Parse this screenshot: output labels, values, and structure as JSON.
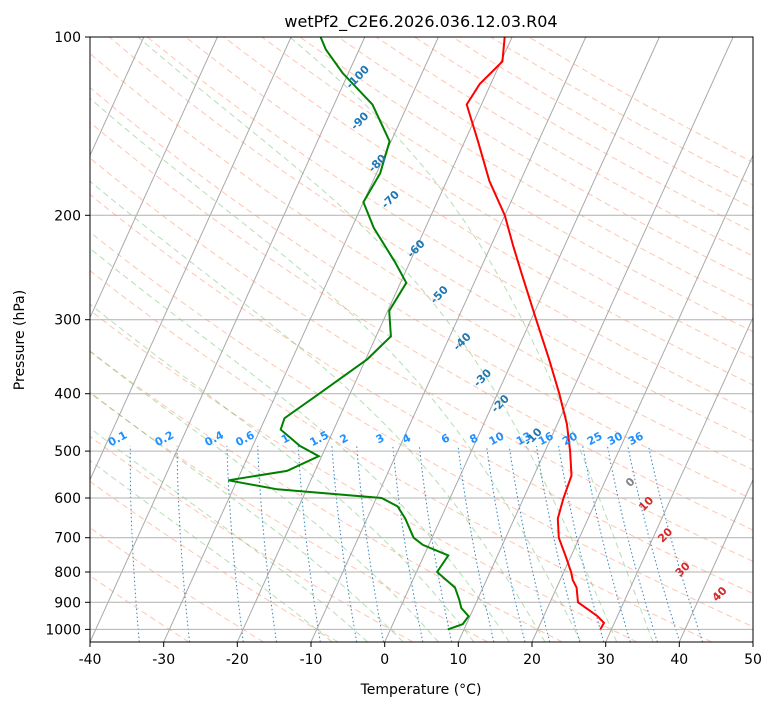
{
  "chart_data": {
    "type": "line",
    "chart_kind": "skew-T log-P diagram",
    "title": "wetPf2_C2E6.2026.036.12.03.R04",
    "xlabel": "Temperature (°C)",
    "ylabel": "Pressure (hPa)",
    "xlim": [
      -40,
      50
    ],
    "ylim": [
      1050,
      100
    ],
    "x_ticks": [
      -40,
      -30,
      -20,
      -10,
      0,
      10,
      20,
      30,
      40,
      50
    ],
    "y_ticks": [
      100,
      200,
      300,
      400,
      500,
      600,
      700,
      800,
      900,
      1000
    ],
    "grid": true,
    "series": [
      {
        "name": "temperature",
        "color": "#ff0000",
        "points": [
          [
            1000,
            28.5
          ],
          [
            975,
            28.6
          ],
          [
            950,
            27.3
          ],
          [
            925,
            25.6
          ],
          [
            900,
            23.8
          ],
          [
            850,
            22.7
          ],
          [
            825,
            21.7
          ],
          [
            800,
            21.0
          ],
          [
            750,
            19.2
          ],
          [
            700,
            17.2
          ],
          [
            650,
            15.9
          ],
          [
            600,
            15.4
          ],
          [
            550,
            15.1
          ],
          [
            500,
            13.4
          ],
          [
            450,
            11.3
          ],
          [
            400,
            8.4
          ],
          [
            350,
            4.9
          ],
          [
            300,
            0.7
          ],
          [
            250,
            -4.2
          ],
          [
            225,
            -7.0
          ],
          [
            200,
            -10.0
          ],
          [
            175,
            -14.2
          ],
          [
            150,
            -18.2
          ],
          [
            130,
            -22.0
          ],
          [
            120,
            -21.5
          ],
          [
            110,
            -19.8
          ],
          [
            100,
            -21.0
          ]
        ]
      },
      {
        "name": "dewpoint",
        "color": "#008000",
        "points": [
          [
            1000,
            7.8
          ],
          [
            980,
            9.5
          ],
          [
            950,
            9.8
          ],
          [
            920,
            8.3
          ],
          [
            890,
            7.5
          ],
          [
            850,
            6.2
          ],
          [
            800,
            2.8
          ],
          [
            780,
            3.0
          ],
          [
            750,
            3.3
          ],
          [
            720,
            -0.8
          ],
          [
            700,
            -2.5
          ],
          [
            650,
            -4.8
          ],
          [
            620,
            -6.6
          ],
          [
            600,
            -9.3
          ],
          [
            580,
            -24.0
          ],
          [
            560,
            -31.2
          ],
          [
            540,
            -23.8
          ],
          [
            510,
            -20.4
          ],
          [
            490,
            -23.6
          ],
          [
            460,
            -27.2
          ],
          [
            440,
            -27.4
          ],
          [
            400,
            -24.2
          ],
          [
            350,
            -19.8
          ],
          [
            320,
            -18.0
          ],
          [
            290,
            -19.8
          ],
          [
            260,
            -19.2
          ],
          [
            240,
            -22.0
          ],
          [
            210,
            -27.0
          ],
          [
            190,
            -30.0
          ],
          [
            170,
            -29.5
          ],
          [
            150,
            -30.2
          ],
          [
            130,
            -34.8
          ],
          [
            115,
            -40.8
          ],
          [
            105,
            -44.5
          ],
          [
            100,
            -46.0
          ]
        ]
      }
    ],
    "isotherm_step_c": 10,
    "dry_adiabats_c": [
      -30,
      -20,
      -10,
      0,
      10,
      20,
      30,
      40,
      50,
      60,
      70,
      80,
      90,
      100,
      110,
      120,
      130,
      140,
      150,
      160,
      170,
      180,
      190,
      200,
      210,
      220
    ],
    "moist_adiabats_c": [
      -10,
      -5,
      0,
      5,
      10,
      15,
      20,
      25,
      30,
      35
    ],
    "mixing_ratios_gkg": [
      0.1,
      0.2,
      0.4,
      0.6,
      1,
      1.5,
      2,
      3,
      4,
      6,
      8,
      10,
      13,
      16,
      20,
      25,
      30,
      36
    ],
    "mixing_ratio_label_pressure_hpa": 490,
    "isotherm_labels_blue": [
      {
        "text": "-100",
        "p": 118,
        "t": -38
      },
      {
        "text": "-90",
        "p": 140,
        "t": -35
      },
      {
        "text": "-80",
        "p": 165,
        "t": -30
      },
      {
        "text": "-70",
        "p": 190,
        "t": -26
      },
      {
        "text": "-60",
        "p": 230,
        "t": -19.5
      },
      {
        "text": "-50",
        "p": 275,
        "t": -13.5
      },
      {
        "text": "-40",
        "p": 330,
        "t": -7.5
      },
      {
        "text": "-30",
        "p": 380,
        "t": -2.5
      },
      {
        "text": "-20",
        "p": 420,
        "t": 1.5
      },
      {
        "text": "-10",
        "p": 478,
        "t": 8
      }
    ],
    "isotherm_labels_red": [
      {
        "text": "0",
        "p": 570,
        "t": 24,
        "color": "#808080"
      },
      {
        "text": "10",
        "p": 620,
        "t": 27.5
      },
      {
        "text": "20",
        "p": 700,
        "t": 32
      },
      {
        "text": "30",
        "p": 800,
        "t": 36.5
      },
      {
        "text": "40",
        "p": 880,
        "t": 43
      }
    ]
  },
  "colors": {
    "temperature": "#ff0000",
    "dewpoint": "#008000",
    "grid": "#b0b0b0",
    "isotherm": "#a0a0a0",
    "dry_adiabat": "#ff7f50",
    "moist_adiabat": "#2ca02c",
    "mixing_ratio": "#1f77b4",
    "mixing_label": "#1e90ff",
    "isotherm_label": "#1f77b4",
    "warm_label": "#d62728"
  }
}
